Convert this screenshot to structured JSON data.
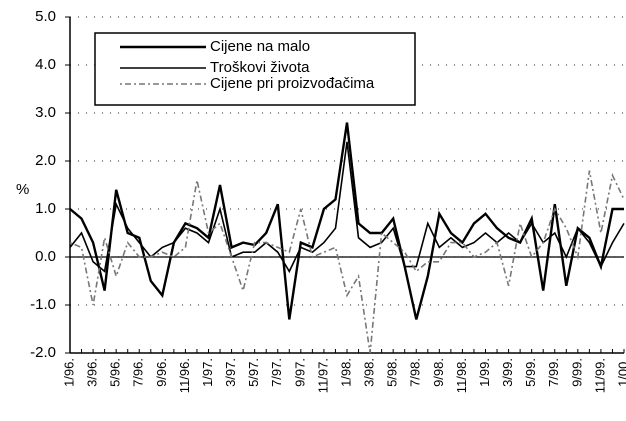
{
  "chart_data": {
    "type": "line",
    "ylabel": "%",
    "categories": [
      "1/96.",
      null,
      "3/96.",
      null,
      "5/96.",
      null,
      "7/96.",
      null,
      "9/96.",
      null,
      "11/96.",
      null,
      "1/97.",
      null,
      "3/97.",
      null,
      "5/97.",
      null,
      "7/97.",
      null,
      "9/97.",
      null,
      "11/97.",
      null,
      "1/98.",
      null,
      "3/98.",
      null,
      "5/98.",
      null,
      "7/98.",
      null,
      "9/98.",
      null,
      "11/98.",
      null,
      "1/99.",
      null,
      "3/99.",
      null,
      "5/99.",
      null,
      "7/99.",
      null,
      "9/99.",
      null,
      "11/99.",
      null,
      "1/00."
    ],
    "series": [
      {
        "name": "Cijene na malo",
        "color": "#000000",
        "style": "solid",
        "values": [
          1.0,
          0.8,
          0.3,
          -0.7,
          1.4,
          0.5,
          0.4,
          -0.5,
          -0.8,
          0.3,
          0.7,
          0.6,
          0.4,
          1.5,
          0.2,
          0.3,
          0.25,
          0.5,
          1.1,
          -1.3,
          0.3,
          0.2,
          1.0,
          1.2,
          2.8,
          0.7,
          0.5,
          0.5,
          0.8,
          -0.2,
          -1.3,
          -0.4,
          0.9,
          0.5,
          0.3,
          0.7,
          0.9,
          0.6,
          0.4,
          0.3,
          0.8,
          -0.7,
          1.1,
          -0.6,
          0.6,
          0.4,
          -0.2,
          1.0,
          1.0
        ]
      },
      {
        "name": "Troškovi života",
        "color": "#000000",
        "style": "thin",
        "values": [
          0.2,
          0.5,
          -0.1,
          -0.3,
          1.1,
          0.6,
          0.3,
          0.0,
          0.2,
          0.3,
          0.6,
          0.5,
          0.3,
          1.0,
          0.0,
          0.1,
          0.1,
          0.3,
          0.1,
          -0.3,
          0.2,
          0.1,
          0.3,
          0.6,
          2.4,
          0.4,
          0.2,
          0.3,
          0.6,
          -0.2,
          -0.2,
          0.7,
          0.2,
          0.4,
          0.2,
          0.3,
          0.5,
          0.3,
          0.5,
          0.3,
          0.7,
          0.3,
          0.5,
          0.0,
          0.6,
          0.3,
          -0.2,
          0.3,
          0.7
        ]
      },
      {
        "name": "Cijene pri proizvođačima",
        "color": "#777777",
        "style": "dashed",
        "values": [
          0.3,
          0.2,
          -1.0,
          0.4,
          -0.4,
          0.3,
          0.0,
          0.0,
          0.1,
          0.0,
          0.2,
          1.6,
          0.5,
          0.7,
          0.0,
          -0.7,
          0.3,
          0.3,
          0.2,
          0.1,
          1.0,
          0.0,
          0.1,
          0.2,
          -0.8,
          -0.4,
          -2.0,
          0.5,
          0.3,
          0.1,
          -0.3,
          -0.1,
          -0.1,
          0.3,
          0.3,
          0.0,
          0.1,
          0.3,
          -0.6,
          0.7,
          0.0,
          0.3,
          1.0,
          0.6,
          0.0,
          1.8,
          0.5,
          1.7,
          1.2
        ]
      }
    ],
    "ylim": [
      -2,
      5
    ],
    "yticks": [
      {
        "value": -2,
        "label": "-2.0"
      },
      {
        "value": -1,
        "label": "-1.0"
      },
      {
        "value": 0,
        "label": "0.0"
      },
      {
        "value": 1,
        "label": "1.0"
      },
      {
        "value": 2,
        "label": "2.0"
      },
      {
        "value": 3,
        "label": "3.0"
      },
      {
        "value": 4,
        "label": "4.0"
      },
      {
        "value": 5,
        "label": "5.0"
      }
    ],
    "grid": true
  }
}
